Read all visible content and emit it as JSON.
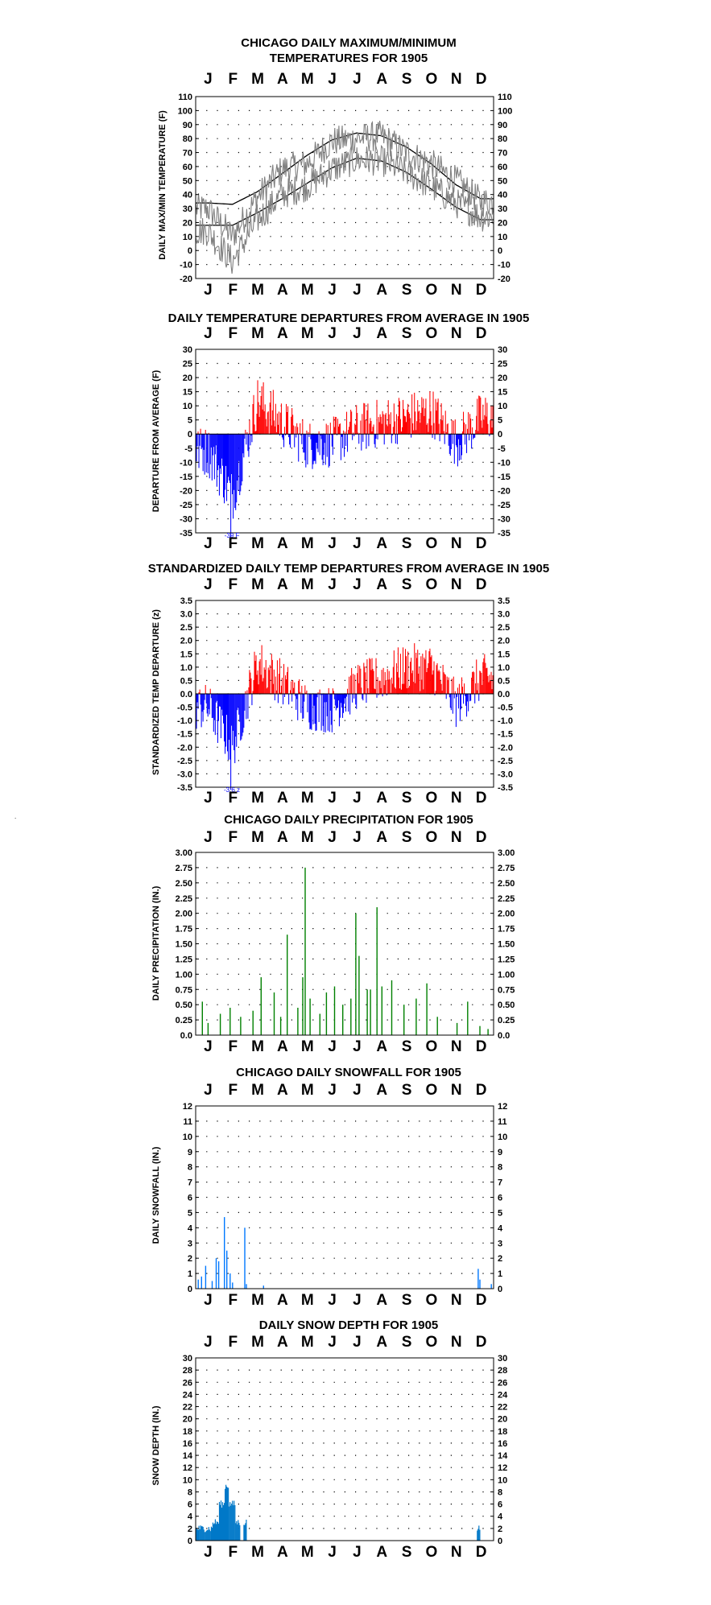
{
  "page": {
    "months": [
      "J",
      "F",
      "M",
      "A",
      "M",
      "J",
      "J",
      "A",
      "S",
      "O",
      "N",
      "D"
    ]
  },
  "charts": {
    "temps": {
      "title_lines": [
        "CHICAGO DAILY MAXIMUM/MINIMUM",
        "TEMPERATURES FOR 1905"
      ],
      "ylabel": "DAILY MAX/MIN TEMPERATURE (F)",
      "ticks": [
        "110",
        "100",
        "90",
        "80",
        "70",
        "60",
        "50",
        "40",
        "30",
        "20",
        "10",
        "0",
        "-10",
        "-20"
      ]
    },
    "departures": {
      "title": "DAILY TEMPERATURE DEPARTURES FROM AVERAGE IN 1905",
      "ylabel": "DEPARTURE FROM AVERAGE (F)",
      "ticks": [
        "30",
        "25",
        "20",
        "15",
        "10",
        "5",
        "0",
        "-5",
        "-10",
        "-15",
        "-20",
        "-25",
        "-30",
        "-35"
      ],
      "annotation": "-39 F"
    },
    "standardized": {
      "title": "STANDARDIZED DAILY TEMP DEPARTURES FROM AVERAGE IN 1905",
      "ylabel": "STANDARDIZED TEMP DEPARTURE (z)",
      "ticks": [
        "3.5",
        "3.0",
        "2.5",
        "2.0",
        "1.5",
        "1.0",
        "0.5",
        "0.0",
        "-0.5",
        "-1.0",
        "-1.5",
        "-2.0",
        "-2.5",
        "-3.0",
        "-3.5"
      ],
      "annotation": "-3.6 z"
    },
    "precip": {
      "title": "CHICAGO DAILY PRECIPITATION FOR 1905",
      "ylabel": "DAILY PRECIPITATION (IN.)",
      "ticks": [
        "3.00",
        "2.75",
        "2.50",
        "2.25",
        "2.00",
        "1.75",
        "1.50",
        "1.25",
        "1.00",
        "0.75",
        "0.50",
        "0.25",
        "0.0"
      ]
    },
    "snowfall": {
      "title": "CHICAGO DAILY SNOWFALL FOR 1905",
      "ylabel": "DAILY SNOWFALL (IN.)",
      "ticks": [
        "12",
        "11",
        "10",
        "9",
        "8",
        "7",
        "6",
        "5",
        "4",
        "3",
        "2",
        "1",
        "0"
      ]
    },
    "snowdepth": {
      "title": "DAILY SNOW DEPTH FOR 1905",
      "ylabel": "SNOW DEPTH (IN.)",
      "ticks": [
        "30",
        "28",
        "26",
        "24",
        "22",
        "20",
        "18",
        "16",
        "14",
        "12",
        "10",
        "8",
        "6",
        "4",
        "2",
        "0"
      ]
    }
  },
  "chart_data": [
    {
      "type": "line",
      "title": "CHICAGO DAILY MAXIMUM/MINIMUM TEMPERATURES FOR 1905",
      "ylabel": "DAILY MAX/MIN TEMPERATURE (F)",
      "ylim": [
        -20,
        110
      ],
      "x": [
        "J",
        "F",
        "M",
        "A",
        "M",
        "J",
        "J",
        "A",
        "S",
        "O",
        "N",
        "D"
      ],
      "series": [
        {
          "values": [
            34,
            33,
            42,
            55,
            68,
            79,
            84,
            82,
            74,
            62,
            47,
            37
          ],
          "color": "#000000"
        },
        {
          "values": [
            18,
            18,
            27,
            37,
            48,
            59,
            66,
            64,
            56,
            44,
            31,
            22
          ],
          "color": "#000000"
        },
        {
          "values": [
            30,
            10,
            38,
            58,
            62,
            78,
            80,
            82,
            70,
            62,
            50,
            35
          ],
          "color": "#808080"
        },
        {
          "values": [
            14,
            -8,
            22,
            40,
            46,
            58,
            65,
            64,
            56,
            46,
            34,
            24
          ],
          "color": "#808080"
        }
      ]
    },
    {
      "type": "bar",
      "title": "DAILY TEMPERATURE DEPARTURES FROM AVERAGE IN 1905",
      "ylabel": "DEPARTURE FROM AVERAGE (F)",
      "ylim": [
        -35,
        30
      ],
      "x": [
        "J",
        "F",
        "M",
        "A",
        "M",
        "J",
        "J",
        "A",
        "S",
        "O",
        "N",
        "D"
      ],
      "values": [
        -6,
        -22,
        12,
        4,
        -4,
        -3,
        2,
        4,
        6,
        8,
        -3,
        6
      ],
      "annotation": "-39 F"
    },
    {
      "type": "bar",
      "title": "STANDARDIZED DAILY TEMP DEPARTURES FROM AVERAGE IN 1905",
      "ylabel": "STANDARDIZED TEMP DEPARTURE (z)",
      "ylim": [
        -3.5,
        3.5
      ],
      "x": [
        "J",
        "F",
        "M",
        "A",
        "M",
        "J",
        "J",
        "A",
        "S",
        "O",
        "N",
        "D"
      ],
      "values": [
        -0.5,
        -2.0,
        1.2,
        0.4,
        -0.5,
        -0.6,
        0.3,
        0.6,
        1.0,
        1.0,
        -0.4,
        0.6
      ],
      "annotation": "-3.6 z"
    },
    {
      "type": "bar",
      "title": "CHICAGO DAILY PRECIPITATION FOR 1905",
      "ylabel": "DAILY PRECIPITATION (IN.)",
      "ylim": [
        0,
        3.0
      ],
      "values_daily": [
        {
          "day": 8,
          "v": 0.55
        },
        {
          "day": 15,
          "v": 0.2
        },
        {
          "day": 30,
          "v": 0.35
        },
        {
          "day": 42,
          "v": 0.45
        },
        {
          "day": 55,
          "v": 0.3
        },
        {
          "day": 70,
          "v": 0.4
        },
        {
          "day": 80,
          "v": 0.95
        },
        {
          "day": 96,
          "v": 0.7
        },
        {
          "day": 104,
          "v": 0.3
        },
        {
          "day": 112,
          "v": 1.65
        },
        {
          "day": 125,
          "v": 0.45
        },
        {
          "day": 131,
          "v": 0.95
        },
        {
          "day": 134,
          "v": 2.75
        },
        {
          "day": 140,
          "v": 0.6
        },
        {
          "day": 152,
          "v": 0.35
        },
        {
          "day": 160,
          "v": 0.7
        },
        {
          "day": 170,
          "v": 0.8
        },
        {
          "day": 180,
          "v": 0.5
        },
        {
          "day": 190,
          "v": 0.6
        },
        {
          "day": 196,
          "v": 2.0
        },
        {
          "day": 200,
          "v": 1.3
        },
        {
          "day": 210,
          "v": 0.75
        },
        {
          "day": 214,
          "v": 0.75
        },
        {
          "day": 222,
          "v": 2.1
        },
        {
          "day": 228,
          "v": 0.8
        },
        {
          "day": 240,
          "v": 0.9
        },
        {
          "day": 255,
          "v": 0.5
        },
        {
          "day": 270,
          "v": 0.6
        },
        {
          "day": 283,
          "v": 0.85
        },
        {
          "day": 296,
          "v": 0.3
        },
        {
          "day": 320,
          "v": 0.2
        },
        {
          "day": 333,
          "v": 0.55
        },
        {
          "day": 348,
          "v": 0.15
        },
        {
          "day": 358,
          "v": 0.1
        }
      ]
    },
    {
      "type": "bar",
      "title": "CHICAGO DAILY SNOWFALL FOR 1905",
      "ylabel": "DAILY SNOWFALL (IN.)",
      "ylim": [
        0,
        12
      ],
      "values_daily": [
        {
          "day": 3,
          "v": 0.6
        },
        {
          "day": 7,
          "v": 0.8
        },
        {
          "day": 12,
          "v": 1.5
        },
        {
          "day": 20,
          "v": 0.5
        },
        {
          "day": 25,
          "v": 2.0
        },
        {
          "day": 28,
          "v": 1.8
        },
        {
          "day": 35,
          "v": 4.7
        },
        {
          "day": 38,
          "v": 2.5
        },
        {
          "day": 42,
          "v": 1.0
        },
        {
          "day": 45,
          "v": 0.4
        },
        {
          "day": 60,
          "v": 4.0
        },
        {
          "day": 62,
          "v": 0.3
        },
        {
          "day": 83,
          "v": 0.2
        },
        {
          "day": 346,
          "v": 1.3
        },
        {
          "day": 348,
          "v": 0.6
        },
        {
          "day": 362,
          "v": 0.3
        }
      ]
    },
    {
      "type": "area",
      "title": "DAILY SNOW DEPTH FOR 1905",
      "ylabel": "SNOW DEPTH (IN.)",
      "ylim": [
        0,
        30
      ],
      "segments": [
        {
          "start": 1,
          "end": 20,
          "v": 2
        },
        {
          "start": 21,
          "end": 28,
          "v": 3
        },
        {
          "start": 29,
          "end": 35,
          "v": 6
        },
        {
          "start": 36,
          "end": 40,
          "v": 9
        },
        {
          "start": 41,
          "end": 48,
          "v": 6
        },
        {
          "start": 49,
          "end": 54,
          "v": 3
        },
        {
          "start": 59,
          "end": 62,
          "v": 3
        },
        {
          "start": 345,
          "end": 348,
          "v": 2
        }
      ]
    }
  ]
}
